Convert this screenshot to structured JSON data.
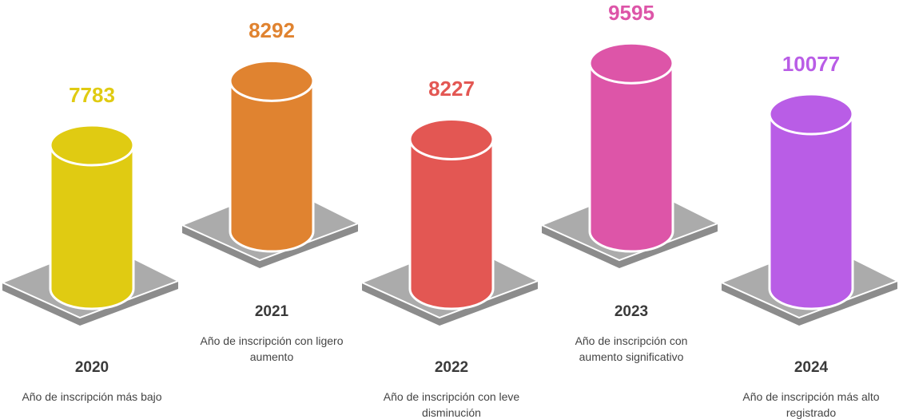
{
  "chart_data": {
    "type": "bar",
    "categories": [
      "2020",
      "2021",
      "2022",
      "2023",
      "2024"
    ],
    "values": [
      7783,
      8292,
      8227,
      9595,
      10077
    ],
    "descriptions": [
      "Año de inscripción más bajo",
      "Año de inscripción con ligero aumento",
      "Año de inscripción con leve disminución",
      "Año de inscripción con aumento significativo",
      "Año de inscripción más alto registrado"
    ],
    "colors": [
      "#e0cb12",
      "#e08330",
      "#e35753",
      "#dd55a8",
      "#b95de6"
    ]
  }
}
